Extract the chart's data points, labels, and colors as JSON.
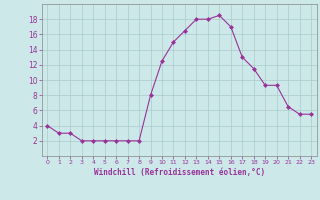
{
  "x": [
    0,
    1,
    2,
    3,
    4,
    5,
    6,
    7,
    8,
    9,
    10,
    11,
    12,
    13,
    14,
    15,
    16,
    17,
    18,
    19,
    20,
    21,
    22,
    23
  ],
  "y": [
    4,
    3,
    3,
    2,
    2,
    2,
    2,
    2,
    2,
    8,
    12.5,
    15,
    16.5,
    18,
    18,
    18.5,
    17,
    13,
    11.5,
    9.3,
    9.3,
    6.5,
    5.5,
    5.5
  ],
  "line_color": "#993399",
  "marker": "D",
  "marker_size": 2,
  "bg_color": "#cce8e8",
  "grid_color": "#aacccc",
  "xlabel": "Windchill (Refroidissement éolien,°C)",
  "xlabel_color": "#993399",
  "tick_color": "#993399",
  "label_color": "#993399",
  "ylim": [
    0,
    20
  ],
  "xlim": [
    -0.5,
    23.5
  ],
  "yticks": [
    2,
    4,
    6,
    8,
    10,
    12,
    14,
    16,
    18
  ],
  "xticks": [
    0,
    1,
    2,
    3,
    4,
    5,
    6,
    7,
    8,
    9,
    10,
    11,
    12,
    13,
    14,
    15,
    16,
    17,
    18,
    19,
    20,
    21,
    22,
    23
  ]
}
